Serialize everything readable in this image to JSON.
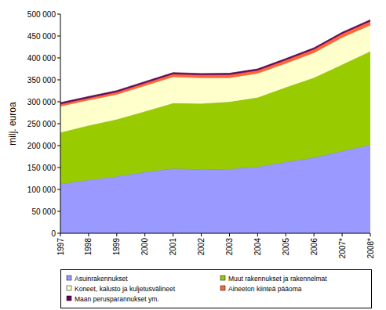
{
  "chart_data": {
    "type": "area",
    "stacked": true,
    "grid": false,
    "legend": "bottom",
    "y_label": "milj. euroa",
    "categories": [
      "1997",
      "1998",
      "1999",
      "2000",
      "2001",
      "2002",
      "2003",
      "2004",
      "2005",
      "2006",
      "2007*",
      "2008*"
    ],
    "ylim": [
      0,
      500000
    ],
    "yticks": [
      0,
      {
        "value": 50000,
        "label": "50 000"
      },
      {
        "value": 100000,
        "label": "100 000"
      },
      {
        "value": 150000,
        "label": "150 000"
      },
      {
        "value": 200000,
        "label": "200 000"
      },
      {
        "value": 250000,
        "label": "250 000"
      },
      {
        "value": 300000,
        "label": "300 000"
      },
      {
        "value": 350000,
        "label": "350 000"
      },
      {
        "value": 400000,
        "label": "400 000"
      },
      {
        "value": 450000,
        "label": "450 000"
      },
      {
        "value": 500000,
        "label": "500 000"
      }
    ],
    "series": [
      {
        "name": "Asuinrakennukset",
        "color": "#9999ff",
        "values": [
          113000,
          122000,
          130000,
          140000,
          148000,
          146000,
          147000,
          152000,
          163000,
          173000,
          188000,
          202000
        ]
      },
      {
        "name": "Muut rakennukset ja rakennelmat",
        "color": "#99cc00",
        "values": [
          117000,
          124000,
          130000,
          138000,
          149000,
          150000,
          153000,
          158000,
          170000,
          182000,
          197000,
          213000
        ]
      },
      {
        "name": "Koneet, kalusto ja kuljetusvälineet",
        "color": "#ffffcc",
        "values": [
          60000,
          58000,
          57000,
          59000,
          60000,
          59000,
          55000,
          55000,
          55000,
          57000,
          62000,
          60000
        ]
      },
      {
        "name": "Aineeton kiinteä pääoma",
        "color": "#ff6633",
        "values": [
          5000,
          5000,
          5500,
          6000,
          6500,
          6500,
          7000,
          7000,
          7500,
          8000,
          8500,
          9000
        ]
      },
      {
        "name": "Maan perusparannukset ym.",
        "color": "#660066",
        "values": [
          3000,
          3000,
          3000,
          3000,
          3000,
          3000,
          3000,
          3000,
          3000,
          3000,
          3000,
          3000
        ]
      }
    ]
  }
}
